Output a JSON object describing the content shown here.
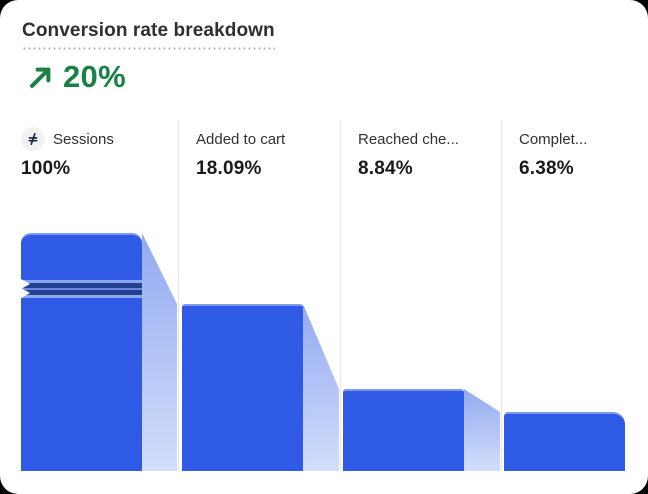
{
  "header": {
    "title": "Conversion rate breakdown"
  },
  "metric": {
    "value": "20%",
    "direction": "up",
    "color": "#1a8145"
  },
  "chart_data": {
    "type": "funnel",
    "title": "Conversion rate breakdown",
    "overall_conversion": "20%",
    "stages": [
      {
        "label": "Sessions",
        "display_value": "100%",
        "value": 100,
        "truncated": true,
        "icon": "axis-break-icon"
      },
      {
        "label": "Added to cart",
        "display_value": "18.09%",
        "value": 18.09
      },
      {
        "label": "Reached che...",
        "display_value": "8.84%",
        "value": 8.84
      },
      {
        "label": "Complet...",
        "display_value": "6.38%",
        "value": 6.38
      }
    ],
    "colors": {
      "bar": "#2f5ae6",
      "bar_top_highlight": "#7e98ed",
      "connector_top": "#92aaf0",
      "connector_bottom": "#d3defb",
      "break_stripe": "#24418f",
      "break_mid": "#6e87e2",
      "break_edge": "#8ea6ef",
      "divider": "#e4e4e4",
      "metric_green": "#1a8145"
    },
    "layout_hint": "first bar truncated with break marks; light sloped connectors join each stage; baseline at card bottom"
  }
}
